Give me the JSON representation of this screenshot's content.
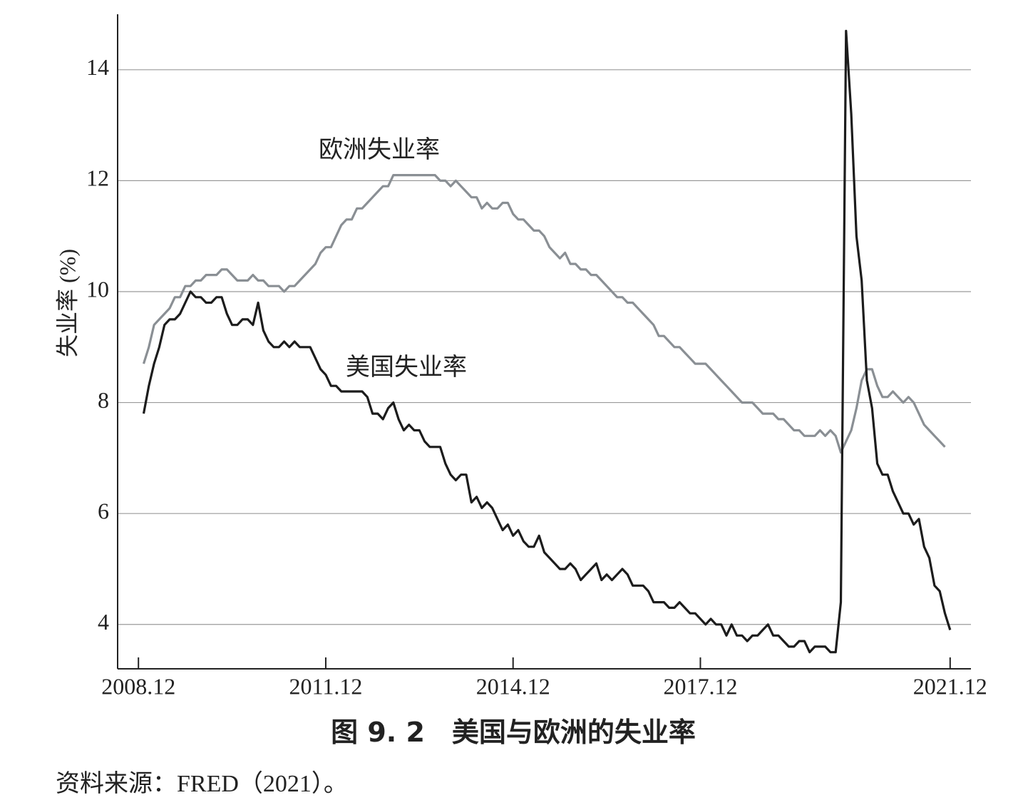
{
  "chart_data": {
    "type": "line",
    "caption": "图 9. 2　美国与欧洲的失业率",
    "source": "资料来源：FRED（2021）。",
    "y_label": "失业率 (%)",
    "x": [
      "2009.01",
      "2009.02",
      "2009.03",
      "2009.04",
      "2009.05",
      "2009.06",
      "2009.07",
      "2009.08",
      "2009.09",
      "2009.10",
      "2009.11",
      "2009.12",
      "2010.01",
      "2010.02",
      "2010.03",
      "2010.04",
      "2010.05",
      "2010.06",
      "2010.07",
      "2010.08",
      "2010.09",
      "2010.10",
      "2010.11",
      "2010.12",
      "2011.01",
      "2011.02",
      "2011.03",
      "2011.04",
      "2011.05",
      "2011.06",
      "2011.07",
      "2011.08",
      "2011.09",
      "2011.10",
      "2011.11",
      "2011.12",
      "2012.01",
      "2012.02",
      "2012.03",
      "2012.04",
      "2012.05",
      "2012.06",
      "2012.07",
      "2012.08",
      "2012.09",
      "2012.10",
      "2012.11",
      "2012.12",
      "2013.01",
      "2013.02",
      "2013.03",
      "2013.04",
      "2013.05",
      "2013.06",
      "2013.07",
      "2013.08",
      "2013.09",
      "2013.10",
      "2013.11",
      "2013.12",
      "2014.01",
      "2014.02",
      "2014.03",
      "2014.04",
      "2014.05",
      "2014.06",
      "2014.07",
      "2014.08",
      "2014.09",
      "2014.10",
      "2014.11",
      "2014.12",
      "2015.01",
      "2015.02",
      "2015.03",
      "2015.04",
      "2015.05",
      "2015.06",
      "2015.07",
      "2015.08",
      "2015.09",
      "2015.10",
      "2015.11",
      "2015.12",
      "2016.01",
      "2016.02",
      "2016.03",
      "2016.04",
      "2016.05",
      "2016.06",
      "2016.07",
      "2016.08",
      "2016.09",
      "2016.10",
      "2016.11",
      "2016.12",
      "2017.01",
      "2017.02",
      "2017.03",
      "2017.04",
      "2017.05",
      "2017.06",
      "2017.07",
      "2017.08",
      "2017.09",
      "2017.10",
      "2017.11",
      "2017.12",
      "2018.01",
      "2018.02",
      "2018.03",
      "2018.04",
      "2018.05",
      "2018.06",
      "2018.07",
      "2018.08",
      "2018.09",
      "2018.10",
      "2018.11",
      "2018.12",
      "2019.01",
      "2019.02",
      "2019.03",
      "2019.04",
      "2019.05",
      "2019.06",
      "2019.07",
      "2019.08",
      "2019.09",
      "2019.10",
      "2019.11",
      "2019.12",
      "2020.01",
      "2020.02",
      "2020.03",
      "2020.04",
      "2020.05",
      "2020.06",
      "2020.07",
      "2020.08",
      "2020.09",
      "2020.10",
      "2020.11",
      "2020.12",
      "2021.01",
      "2021.02",
      "2021.03",
      "2021.04",
      "2021.05",
      "2021.06",
      "2021.07",
      "2021.08",
      "2021.09",
      "2021.10",
      "2021.11",
      "2021.12"
    ],
    "series": [
      {
        "name": "美国失业率",
        "color": "#1c1c1c",
        "values": [
          7.8,
          8.3,
          8.7,
          9.0,
          9.4,
          9.5,
          9.5,
          9.6,
          9.8,
          10.0,
          9.9,
          9.9,
          9.8,
          9.8,
          9.9,
          9.9,
          9.6,
          9.4,
          9.4,
          9.5,
          9.5,
          9.4,
          9.8,
          9.3,
          9.1,
          9.0,
          9.0,
          9.1,
          9.0,
          9.1,
          9.0,
          9.0,
          9.0,
          8.8,
          8.6,
          8.5,
          8.3,
          8.3,
          8.2,
          8.2,
          8.2,
          8.2,
          8.2,
          8.1,
          7.8,
          7.8,
          7.7,
          7.9,
          8.0,
          7.7,
          7.5,
          7.6,
          7.5,
          7.5,
          7.3,
          7.2,
          7.2,
          7.2,
          6.9,
          6.7,
          6.6,
          6.7,
          6.7,
          6.2,
          6.3,
          6.1,
          6.2,
          6.1,
          5.9,
          5.7,
          5.8,
          5.6,
          5.7,
          5.5,
          5.4,
          5.4,
          5.6,
          5.3,
          5.2,
          5.1,
          5.0,
          5.0,
          5.1,
          5.0,
          4.8,
          4.9,
          5.0,
          5.1,
          4.8,
          4.9,
          4.8,
          4.9,
          5.0,
          4.9,
          4.7,
          4.7,
          4.7,
          4.6,
          4.4,
          4.4,
          4.4,
          4.3,
          4.3,
          4.4,
          4.3,
          4.2,
          4.2,
          4.1,
          4.0,
          4.1,
          4.0,
          4.0,
          3.8,
          4.0,
          3.8,
          3.8,
          3.7,
          3.8,
          3.8,
          3.9,
          4.0,
          3.8,
          3.8,
          3.7,
          3.6,
          3.6,
          3.7,
          3.7,
          3.5,
          3.6,
          3.6,
          3.6,
          3.5,
          3.5,
          4.4,
          14.7,
          13.2,
          11.0,
          10.2,
          8.4,
          7.9,
          6.9,
          6.7,
          6.7,
          6.4,
          6.2,
          6.0,
          6.0,
          5.8,
          5.9,
          5.4,
          5.2,
          4.7,
          4.6,
          4.2,
          3.9
        ]
      },
      {
        "name": "欧洲失业率",
        "color": "#8a8f94",
        "values": [
          8.7,
          9.0,
          9.4,
          9.5,
          9.6,
          9.7,
          9.9,
          9.9,
          10.1,
          10.1,
          10.2,
          10.2,
          10.3,
          10.3,
          10.3,
          10.4,
          10.4,
          10.3,
          10.2,
          10.2,
          10.2,
          10.3,
          10.2,
          10.2,
          10.1,
          10.1,
          10.1,
          10.0,
          10.1,
          10.1,
          10.2,
          10.3,
          10.4,
          10.5,
          10.7,
          10.8,
          10.8,
          11.0,
          11.2,
          11.3,
          11.3,
          11.5,
          11.5,
          11.6,
          11.7,
          11.8,
          11.9,
          11.9,
          12.1,
          12.1,
          12.1,
          12.1,
          12.1,
          12.1,
          12.1,
          12.1,
          12.1,
          12.0,
          12.0,
          11.9,
          12.0,
          11.9,
          11.8,
          11.7,
          11.7,
          11.5,
          11.6,
          11.5,
          11.5,
          11.6,
          11.6,
          11.4,
          11.3,
          11.3,
          11.2,
          11.1,
          11.1,
          11.0,
          10.8,
          10.7,
          10.6,
          10.7,
          10.5,
          10.5,
          10.4,
          10.4,
          10.3,
          10.3,
          10.2,
          10.1,
          10.0,
          9.9,
          9.9,
          9.8,
          9.8,
          9.7,
          9.6,
          9.5,
          9.4,
          9.2,
          9.2,
          9.1,
          9.0,
          9.0,
          8.9,
          8.8,
          8.7,
          8.7,
          8.7,
          8.6,
          8.5,
          8.4,
          8.3,
          8.2,
          8.1,
          8.0,
          8.0,
          8.0,
          7.9,
          7.8,
          7.8,
          7.8,
          7.7,
          7.7,
          7.6,
          7.5,
          7.5,
          7.4,
          7.4,
          7.4,
          7.5,
          7.4,
          7.5,
          7.4,
          7.1,
          7.3,
          7.5,
          7.9,
          8.4,
          8.6,
          8.6,
          8.3,
          8.1,
          8.1,
          8.2,
          8.1,
          8.0,
          8.1,
          8.0,
          7.8,
          7.6,
          7.5,
          7.4,
          7.3,
          7.2,
          null
        ]
      }
    ],
    "xlim": [
      "2008.08",
      "2022.04"
    ],
    "xticks": [
      "2008.12",
      "2011.12",
      "2014.12",
      "2017.12",
      "2021.12"
    ],
    "ylim": [
      3.2,
      15
    ],
    "yticks": [
      4,
      6,
      8,
      10,
      12,
      14
    ],
    "grid": true
  }
}
